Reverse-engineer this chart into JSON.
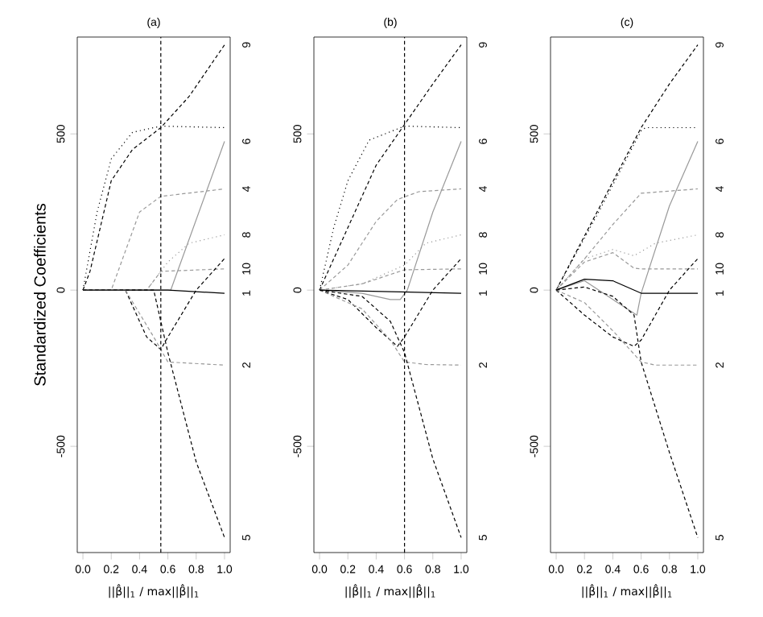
{
  "chart_data": [
    {
      "type": "line",
      "title": "(a)",
      "xlabel": "||β̂||$_{1}$ / max||β̂||$_{1}$",
      "ylabel": "Standardized Coefficients",
      "xlim": [
        -0.04,
        1.04
      ],
      "ylim": [
        -840,
        810
      ],
      "xticks": [
        {
          "value": 0,
          "label": "0.0"
        },
        {
          "value": 0.2,
          "label": "0.2"
        },
        {
          "value": 0.4,
          "label": "0.4"
        },
        {
          "value": 0.6,
          "label": "0.6"
        },
        {
          "value": 0.8,
          "label": "0.8"
        },
        {
          "value": 1,
          "label": "1.0"
        }
      ],
      "yticks": [
        -500,
        0,
        500
      ],
      "ref_lines": [
        {
          "axis": "x",
          "value": 0.55,
          "color": "#000000",
          "line_style": "dashed"
        }
      ],
      "series": [
        {
          "color": "#000000",
          "line_style": "dotted",
          "x": [
            0,
            0.1,
            0.2,
            0.35,
            0.55,
            1
          ],
          "values": [
            0,
            250,
            420,
            505,
            525,
            520
          ]
        },
        {
          "name": "9",
          "color": "#000000",
          "line_style": "dashed",
          "x": [
            0,
            0.05,
            0.2,
            0.35,
            0.55,
            0.75,
            1
          ],
          "values": [
            0,
            60,
            350,
            450,
            520,
            620,
            785
          ]
        },
        {
          "name": "4",
          "color": "#999999",
          "line_style": "dashed",
          "x": [
            0,
            0.2,
            0.4,
            0.55,
            1
          ],
          "values": [
            0,
            0,
            250,
            300,
            324
          ]
        },
        {
          "name": "6",
          "color": "#999999",
          "line_style": "solid",
          "x": [
            0,
            0.62,
            1
          ],
          "values": [
            0,
            0,
            476
          ]
        },
        {
          "name": "8",
          "color": "#999999",
          "line_style": "dotted",
          "x": [
            0,
            0.45,
            0.6,
            0.75,
            1
          ],
          "values": [
            0,
            0,
            90,
            150,
            177
          ]
        },
        {
          "name": "10",
          "color": "#999999",
          "line_style": "dashed",
          "x": [
            0,
            0.45,
            0.55,
            1
          ],
          "values": [
            0,
            0,
            60,
            68
          ]
        },
        {
          "name": "1",
          "color": "#000000",
          "line_style": "solid",
          "x": [
            0,
            0.6,
            1
          ],
          "values": [
            0,
            0,
            -10
          ]
        },
        {
          "color": "#000000",
          "line_style": "dashed",
          "x": [
            0,
            0.3,
            0.45,
            0.55,
            0.6,
            0.8,
            1
          ],
          "values": [
            0,
            0,
            -150,
            -190,
            -150,
            0,
            101
          ]
        },
        {
          "name": "2",
          "color": "#999999",
          "line_style": "dashed",
          "x": [
            0,
            0.3,
            0.5,
            0.6,
            1
          ],
          "values": [
            0,
            0,
            -150,
            -230,
            -240
          ]
        },
        {
          "name": "5",
          "color": "#000000",
          "line_style": "dashed",
          "x": [
            0,
            0.5,
            0.6,
            0.8,
            1
          ],
          "values": [
            0,
            0,
            -200,
            -550,
            -792
          ]
        }
      ]
    },
    {
      "type": "line",
      "title": "(b)",
      "xlabel": "||β̂||$_{1}$ / max||β̂||$_{1}$",
      "xlim": [
        -0.04,
        1.04
      ],
      "ylim": [
        -840,
        810
      ],
      "xticks": [
        {
          "value": 0,
          "label": "0.0"
        },
        {
          "value": 0.2,
          "label": "0.2"
        },
        {
          "value": 0.4,
          "label": "0.4"
        },
        {
          "value": 0.6,
          "label": "0.6"
        },
        {
          "value": 0.8,
          "label": "0.8"
        },
        {
          "value": 1,
          "label": "1.0"
        }
      ],
      "yticks": [
        -500,
        0,
        500
      ],
      "ref_lines": [
        {
          "axis": "x",
          "value": 0.6,
          "color": "#000000",
          "line_style": "dashed"
        }
      ],
      "series": [
        {
          "color": "#000000",
          "line_style": "dotted",
          "x": [
            0,
            0.1,
            0.2,
            0.35,
            0.6,
            1
          ],
          "values": [
            0,
            200,
            350,
            480,
            525,
            520
          ]
        },
        {
          "name": "9",
          "color": "#000000",
          "line_style": "dashed",
          "x": [
            0,
            0.2,
            0.4,
            0.6,
            0.8,
            1
          ],
          "values": [
            0,
            200,
            400,
            530,
            660,
            785
          ]
        },
        {
          "name": "4",
          "color": "#999999",
          "line_style": "dashed",
          "x": [
            0,
            0.2,
            0.4,
            0.55,
            0.7,
            1
          ],
          "values": [
            0,
            80,
            220,
            290,
            315,
            324
          ]
        },
        {
          "name": "6",
          "color": "#999999",
          "line_style": "solid",
          "x": [
            0,
            0.3,
            0.5,
            0.57,
            0.62,
            0.8,
            1
          ],
          "values": [
            0,
            -10,
            -30,
            -30,
            0,
            250,
            476
          ]
        },
        {
          "name": "8",
          "color": "#999999",
          "line_style": "dotted",
          "x": [
            0,
            0.3,
            0.6,
            0.75,
            1
          ],
          "values": [
            0,
            20,
            80,
            150,
            177
          ]
        },
        {
          "name": "10",
          "color": "#999999",
          "line_style": "dashed",
          "x": [
            0,
            0.3,
            0.6,
            1
          ],
          "values": [
            0,
            20,
            65,
            68
          ]
        },
        {
          "name": "1",
          "color": "#000000",
          "line_style": "solid",
          "x": [
            0,
            0.5,
            1
          ],
          "values": [
            0,
            -5,
            -10
          ]
        },
        {
          "color": "#000000",
          "line_style": "dashed",
          "x": [
            0,
            0.2,
            0.4,
            0.55,
            0.6,
            0.8,
            1
          ],
          "values": [
            0,
            -30,
            -120,
            -180,
            -150,
            0,
            101
          ]
        },
        {
          "name": "2",
          "color": "#999999",
          "line_style": "dashed",
          "x": [
            0,
            0.3,
            0.5,
            0.6,
            0.75,
            1
          ],
          "values": [
            0,
            -60,
            -160,
            -230,
            -238,
            -240
          ]
        },
        {
          "name": "5",
          "color": "#000000",
          "line_style": "dashed",
          "x": [
            0,
            0.3,
            0.5,
            0.6,
            0.8,
            1
          ],
          "values": [
            0,
            -20,
            -100,
            -200,
            -540,
            -792
          ]
        }
      ]
    },
    {
      "type": "line",
      "title": "(c)",
      "xlabel": "||β̂||$_{1}$ / max||β̂||$_{1}$",
      "xlim": [
        -0.04,
        1.04
      ],
      "ylim": [
        -840,
        810
      ],
      "xticks": [
        {
          "value": 0,
          "label": "0.0"
        },
        {
          "value": 0.2,
          "label": "0.2"
        },
        {
          "value": 0.4,
          "label": "0.4"
        },
        {
          "value": 0.6,
          "label": "0.6"
        },
        {
          "value": 0.8,
          "label": "0.8"
        },
        {
          "value": 1,
          "label": "1.0"
        }
      ],
      "yticks": [
        -500,
        0,
        500
      ],
      "series": [
        {
          "color": "#000000",
          "line_style": "dotted",
          "x": [
            0,
            0.3,
            0.6,
            0.63,
            1
          ],
          "values": [
            0,
            250,
            510,
            520,
            520
          ]
        },
        {
          "name": "9",
          "color": "#000000",
          "line_style": "dashed",
          "x": [
            0,
            0.3,
            0.6,
            0.8,
            1
          ],
          "values": [
            0,
            260,
            520,
            660,
            785
          ]
        },
        {
          "name": "4",
          "color": "#999999",
          "line_style": "dashed",
          "x": [
            0,
            0.2,
            0.4,
            0.6,
            1
          ],
          "values": [
            0,
            100,
            210,
            310,
            324
          ]
        },
        {
          "name": "6",
          "color": "#999999",
          "line_style": "solid",
          "x": [
            0,
            0.2,
            0.4,
            0.57,
            0.6,
            0.8,
            1
          ],
          "values": [
            0,
            30,
            -30,
            -80,
            -10,
            270,
            476
          ]
        },
        {
          "name": "8",
          "color": "#999999",
          "line_style": "dotted",
          "x": [
            0,
            0.2,
            0.4,
            0.55,
            0.7,
            1
          ],
          "values": [
            0,
            100,
            130,
            110,
            150,
            177
          ]
        },
        {
          "name": "10",
          "color": "#999999",
          "line_style": "dashed",
          "x": [
            0,
            0.2,
            0.4,
            0.55,
            0.6,
            1
          ],
          "values": [
            0,
            90,
            120,
            70,
            68,
            68
          ]
        },
        {
          "name": "1",
          "color": "#000000",
          "line_style": "solid",
          "x": [
            0,
            0.2,
            0.4,
            0.6,
            1
          ],
          "values": [
            0,
            35,
            30,
            -10,
            -10
          ]
        },
        {
          "color": "#000000",
          "line_style": "dashed",
          "x": [
            0,
            0.2,
            0.4,
            0.55,
            0.6,
            0.8,
            1
          ],
          "values": [
            0,
            -80,
            -150,
            -180,
            -160,
            0,
            101
          ]
        },
        {
          "name": "2",
          "color": "#999999",
          "line_style": "dashed",
          "x": [
            0,
            0.2,
            0.4,
            0.6,
            0.7,
            1
          ],
          "values": [
            0,
            -40,
            -130,
            -230,
            -240,
            -240
          ]
        },
        {
          "name": "5",
          "color": "#000000",
          "line_style": "dashed",
          "x": [
            0,
            0.2,
            0.4,
            0.55,
            0.6,
            0.8,
            1
          ],
          "values": [
            0,
            10,
            -20,
            -80,
            -230,
            -520,
            -792
          ]
        }
      ]
    }
  ]
}
